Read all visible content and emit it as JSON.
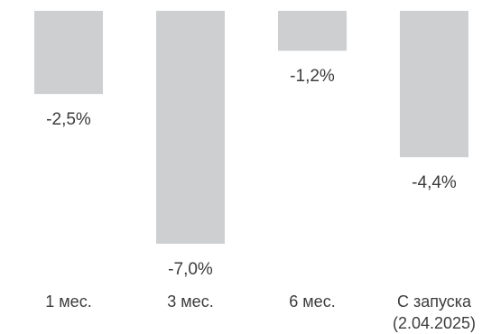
{
  "chart_data": {
    "type": "bar",
    "categories": [
      "1 мес.",
      "3 мес.",
      "6 мес.",
      "С запуска\n(2.04.2025)"
    ],
    "values": [
      -2.5,
      -7.0,
      -1.2,
      -4.4
    ],
    "value_labels": [
      "-2,5%",
      "-7,0%",
      "-1,2%",
      "-4,4%"
    ],
    "title": "",
    "xlabel": "",
    "ylabel": "",
    "ylim": [
      -7.0,
      0
    ],
    "grid": false,
    "bar_color": "#cdcfd1"
  }
}
